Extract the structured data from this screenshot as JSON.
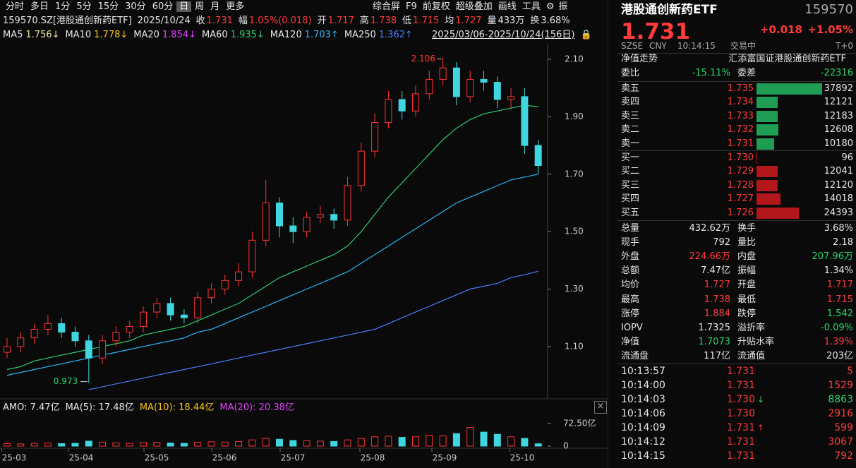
{
  "toolbar": {
    "tabs": [
      "分时",
      "多日",
      "1分",
      "5分",
      "15分",
      "30分",
      "60分",
      "日",
      "周",
      "月",
      "更多"
    ],
    "active": "日",
    "tools": [
      "综合屏",
      "F9",
      "前复权",
      "超级叠加",
      "画线",
      "工具"
    ],
    "cut": "振"
  },
  "quote": {
    "symbol": "159570.SZ[港股通创新药ETF]",
    "date": "2025/10/24",
    "fields": [
      {
        "label": "收",
        "value": "1.731",
        "color": "#ff3b3b"
      },
      {
        "label": "幅",
        "value": "1.05%(0.018)",
        "color": "#ff3b3b"
      },
      {
        "label": "开",
        "value": "1.717",
        "color": "#ff3b3b"
      },
      {
        "label": "高",
        "value": "1.738",
        "color": "#ff3b3b"
      },
      {
        "label": "低",
        "value": "1.715",
        "color": "#ff3b3b"
      },
      {
        "label": "均",
        "value": "1.727",
        "color": "#ff3b3b"
      },
      {
        "label": "量",
        "value": "433万",
        "color": "#e6e6e6"
      },
      {
        "label": "换",
        "value": "3.68%",
        "color": "#e6e6e6"
      }
    ]
  },
  "ma_legend": {
    "items": [
      {
        "label": "MA5",
        "value": "1.756↓",
        "color": "#f0e6a0"
      },
      {
        "label": "MA10",
        "value": "1.778↓",
        "color": "#f5c518"
      },
      {
        "label": "MA20",
        "value": "1.854↓",
        "color": "#e040fb"
      },
      {
        "label": "MA60",
        "value": "1.935↓",
        "color": "#2ecc71"
      },
      {
        "label": "MA120",
        "value": "1.703↑",
        "color": "#29b6f6"
      },
      {
        "label": "MA250",
        "value": "1.362↑",
        "color": "#4d7cff"
      }
    ],
    "range": "2025/03/06-2025/10/24(156日)"
  },
  "chart_data": [
    {
      "type": "candlestick",
      "ylim": [
        0.918,
        2.154
      ],
      "yticks": [
        {
          "value": 2.1,
          "label": "2.10"
        },
        {
          "value": 1.9,
          "label": "1.90"
        },
        {
          "value": 1.7,
          "label": "1.70"
        },
        {
          "value": 1.5,
          "label": "1.50"
        },
        {
          "value": 1.3,
          "label": "1.30"
        },
        {
          "value": 1.1,
          "label": "1.10"
        }
      ],
      "x_labels": [
        "25-03",
        "25-04",
        "25-05",
        "25-06",
        "25-07",
        "25-08",
        "25-09",
        "25-10"
      ],
      "up_color": "#ff3232",
      "down_color": "#3fd6e0",
      "open": [
        1.08,
        1.1,
        1.13,
        1.16,
        1.18,
        1.15,
        1.12,
        1.06,
        1.12,
        1.15,
        1.17,
        1.22,
        1.25,
        1.21,
        1.2,
        1.27,
        1.3,
        1.33,
        1.36,
        1.47,
        1.6,
        1.52,
        1.5,
        1.55,
        1.56,
        1.54,
        1.66,
        1.78,
        1.88,
        1.96,
        1.92,
        1.98,
        2.03,
        2.07,
        1.97,
        2.03,
        2.02,
        1.96,
        1.97,
        1.8
      ],
      "high": [
        1.13,
        1.15,
        1.18,
        1.21,
        1.2,
        1.17,
        1.14,
        1.14,
        1.17,
        1.19,
        1.24,
        1.27,
        1.27,
        1.23,
        1.29,
        1.32,
        1.35,
        1.39,
        1.5,
        1.68,
        1.62,
        1.55,
        1.57,
        1.59,
        1.58,
        1.69,
        1.81,
        1.91,
        1.99,
        1.99,
        2.01,
        2.06,
        2.106,
        2.09,
        2.06,
        2.06,
        2.04,
        2.0,
        2.0,
        1.82
      ],
      "low": [
        1.06,
        1.08,
        1.11,
        1.14,
        1.13,
        1.1,
        0.973,
        1.04,
        1.1,
        1.13,
        1.15,
        1.2,
        1.19,
        1.18,
        1.18,
        1.25,
        1.28,
        1.31,
        1.34,
        1.45,
        1.48,
        1.46,
        1.48,
        1.53,
        1.51,
        1.52,
        1.64,
        1.76,
        1.86,
        1.89,
        1.9,
        1.96,
        2.01,
        1.94,
        1.95,
        1.99,
        1.93,
        1.93,
        1.77,
        1.7
      ],
      "close": [
        1.1,
        1.13,
        1.16,
        1.18,
        1.15,
        1.12,
        1.06,
        1.12,
        1.15,
        1.17,
        1.22,
        1.25,
        1.21,
        1.2,
        1.27,
        1.3,
        1.33,
        1.36,
        1.47,
        1.6,
        1.52,
        1.5,
        1.55,
        1.56,
        1.54,
        1.66,
        1.78,
        1.88,
        1.96,
        1.92,
        1.98,
        2.03,
        2.07,
        1.97,
        2.03,
        2.02,
        1.96,
        1.97,
        1.8,
        1.73
      ],
      "series": [
        {
          "name": "MA60",
          "color": "#2ecc71",
          "values": [
            1.02,
            1.03,
            1.05,
            1.06,
            1.07,
            1.08,
            1.09,
            1.1,
            1.11,
            1.12,
            1.14,
            1.15,
            1.16,
            1.17,
            1.19,
            1.21,
            1.23,
            1.25,
            1.28,
            1.31,
            1.34,
            1.36,
            1.38,
            1.4,
            1.42,
            1.45,
            1.5,
            1.56,
            1.62,
            1.67,
            1.72,
            1.77,
            1.82,
            1.86,
            1.89,
            1.91,
            1.92,
            1.93,
            1.94,
            1.935
          ]
        },
        {
          "name": "MA120",
          "color": "#29b6f6",
          "values": [
            1.0,
            1.01,
            1.02,
            1.03,
            1.04,
            1.05,
            1.06,
            1.07,
            1.08,
            1.09,
            1.1,
            1.11,
            1.12,
            1.13,
            1.15,
            1.16,
            1.18,
            1.2,
            1.22,
            1.24,
            1.26,
            1.28,
            1.3,
            1.32,
            1.34,
            1.36,
            1.39,
            1.42,
            1.45,
            1.48,
            1.51,
            1.54,
            1.57,
            1.6,
            1.62,
            1.64,
            1.66,
            1.68,
            1.69,
            1.7
          ]
        },
        {
          "name": "MA250",
          "color": "#4d7cff",
          "values": [
            null,
            null,
            null,
            null,
            null,
            null,
            0.95,
            0.96,
            0.97,
            0.98,
            0.99,
            1.0,
            1.01,
            1.02,
            1.03,
            1.04,
            1.05,
            1.06,
            1.07,
            1.08,
            1.09,
            1.1,
            1.11,
            1.12,
            1.13,
            1.14,
            1.15,
            1.16,
            1.18,
            1.2,
            1.22,
            1.24,
            1.26,
            1.28,
            1.3,
            1.31,
            1.32,
            1.34,
            1.35,
            1.362
          ]
        }
      ],
      "annotations": {
        "high": "2.106",
        "low": "0.973"
      }
    },
    {
      "type": "bar",
      "legend": [
        {
          "text": "AMO: 7.47亿",
          "color": "#e6e6e6"
        },
        {
          "text": "MA(5): 17.48亿",
          "color": "#e6e6e6"
        },
        {
          "text": "MA(10): 18.44亿",
          "color": "#f5c518"
        },
        {
          "text": "MA(20): 20.38亿",
          "color": "#e040fb"
        }
      ],
      "ylim": [
        0,
        72.5
      ],
      "yticks": [
        {
          "value": 72.5,
          "label": "72.50亿"
        },
        0
      ],
      "values": [
        8,
        7,
        9,
        10,
        8,
        9,
        16,
        12,
        10,
        9,
        11,
        12,
        10,
        9,
        12,
        14,
        13,
        15,
        20,
        25,
        22,
        18,
        17,
        16,
        15,
        20,
        25,
        30,
        32,
        28,
        30,
        35,
        33,
        40,
        60,
        45,
        38,
        30,
        25,
        7.47
      ]
    }
  ],
  "panel": {
    "name": "港股通创新药ETF",
    "code": "159570",
    "price": "1.731",
    "change": "+0.018",
    "change_pct": "+1.05%",
    "status": [
      "SZSE",
      "CNY",
      "10:14:15",
      "交易中"
    ],
    "tplus": "T+0",
    "nav_row": {
      "label": "净值走势",
      "text": "汇添富国证港股通创新药ETF"
    },
    "ratio_row": {
      "label": "委比",
      "value": "-15.11%",
      "label2": "委差",
      "value2": "-22316"
    },
    "book_max": 37892,
    "asks": [
      {
        "label": "卖五",
        "price": "1.735",
        "volume": 37892
      },
      {
        "label": "卖四",
        "price": "1.734",
        "volume": 12121
      },
      {
        "label": "卖三",
        "price": "1.733",
        "volume": 12183
      },
      {
        "label": "卖二",
        "price": "1.732",
        "volume": 12608
      },
      {
        "label": "卖一",
        "price": "1.731",
        "volume": 10180
      }
    ],
    "bids": [
      {
        "label": "买一",
        "price": "1.730",
        "volume": 96
      },
      {
        "label": "买二",
        "price": "1.729",
        "volume": 12041
      },
      {
        "label": "买三",
        "price": "1.728",
        "volume": 12120
      },
      {
        "label": "买四",
        "price": "1.727",
        "volume": 14018
      },
      {
        "label": "买五",
        "price": "1.726",
        "volume": 24393
      }
    ],
    "stats": [
      {
        "l": "总量",
        "lv": "432.62万",
        "lc": "#e6e6e6",
        "r": "换手",
        "rv": "3.68%",
        "rc": "#e6e6e6"
      },
      {
        "l": "现手",
        "lv": "792",
        "lc": "#e6e6e6",
        "r": "量比",
        "rv": "2.18",
        "rc": "#e6e6e6"
      },
      {
        "l": "外盘",
        "lv": "224.66万",
        "lc": "#ff3b3b",
        "r": "内盘",
        "rv": "207.96万",
        "rc": "#2bd46a"
      },
      {
        "l": "总额",
        "lv": "7.47亿",
        "lc": "#e6e6e6",
        "r": "振幅",
        "rv": "1.34%",
        "rc": "#e6e6e6"
      },
      {
        "l": "均价",
        "lv": "1.727",
        "lc": "#ff3b3b",
        "r": "开盘",
        "rv": "1.717",
        "rc": "#ff3b3b"
      },
      {
        "l": "最高",
        "lv": "1.738",
        "lc": "#ff3b3b",
        "r": "最低",
        "rv": "1.715",
        "rc": "#ff3b3b"
      },
      {
        "l": "涨停",
        "lv": "1.884",
        "lc": "#ff3b3b",
        "r": "跌停",
        "rv": "1.542",
        "rc": "#2bd46a"
      },
      {
        "l": "IOPV",
        "lv": "1.7325",
        "lc": "#e6e6e6",
        "r": "溢折率",
        "rv": "-0.09%",
        "rc": "#2bd46a"
      },
      {
        "l": "净值",
        "lv": "1.7073",
        "lc": "#2bd46a",
        "r": "升贴水率",
        "rv": "1.39%",
        "rc": "#ff3b3b"
      },
      {
        "l": "流通盘",
        "lv": "117亿",
        "lc": "#e6e6e6",
        "r": "流通值",
        "rv": "203亿",
        "rc": "#e6e6e6"
      }
    ],
    "ticks": [
      {
        "time": "10:13:57",
        "price": "1.731",
        "volume": "5",
        "vc": "#ff3b3b"
      },
      {
        "time": "10:14:00",
        "price": "1.731",
        "volume": "1529",
        "vc": "#ff3b3b"
      },
      {
        "time": "10:14:03",
        "price": "1.730",
        "arrow": "↓",
        "ac": "#2bd46a",
        "volume": "8863",
        "vc": "#2bd46a"
      },
      {
        "time": "10:14:06",
        "price": "1.730",
        "volume": "2916",
        "vc": "#ff3b3b"
      },
      {
        "time": "10:14:09",
        "price": "1.731",
        "arrow": "↑",
        "ac": "#ff3b3b",
        "volume": "599",
        "vc": "#ff3b3b"
      },
      {
        "time": "10:14:12",
        "price": "1.731",
        "volume": "3067",
        "vc": "#ff3b3b"
      },
      {
        "time": "10:14:15",
        "price": "1.731",
        "volume": "792",
        "vc": "#ff3b3b"
      }
    ]
  }
}
